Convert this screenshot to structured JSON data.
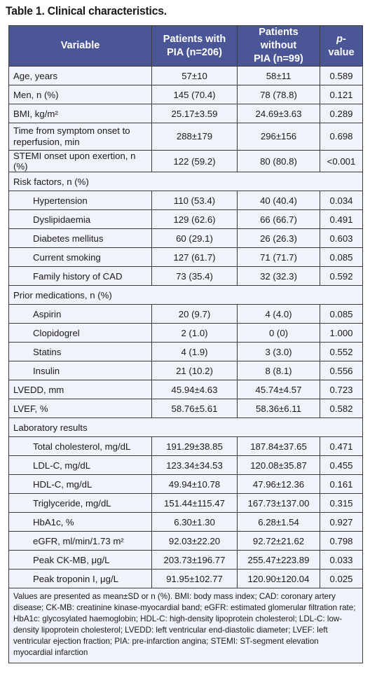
{
  "title": "Table 1. Clinical characteristics.",
  "headers": {
    "variable": "Variable",
    "pia_line1": "Patients with",
    "pia_line2": "PIA (n=206)",
    "nopia_line1": "Patients without",
    "nopia_line2": "PIA (n=99)",
    "p_italic": "p",
    "p_rest": "-value"
  },
  "rows": [
    {
      "label": "Age, years",
      "a": "57±10",
      "b": "58±11",
      "p": "0.589"
    },
    {
      "label": "Men, n (%)",
      "a": "145 (70.4)",
      "b": "78 (78.8)",
      "p": "0.121"
    },
    {
      "label": "BMI, kg/m²",
      "a": "25.17±3.59",
      "b": "24.69±3.63",
      "p": "0.289"
    },
    {
      "label": "Time from symptom onset to reperfusion, min",
      "a": "288±179",
      "b": "296±156",
      "p": "0.698"
    },
    {
      "label": "STEMI onset upon exertion, n (%)",
      "a": "122 (59.2)",
      "b": "80 (80.8)",
      "p": "<0.001"
    },
    {
      "label": "Risk factors, n (%)"
    },
    {
      "label": "Hypertension",
      "a": "110 (53.4)",
      "b": "40 (40.4)",
      "p": "0.034"
    },
    {
      "label": "Dyslipidaemia",
      "a": "129 (62.6)",
      "b": "66 (66.7)",
      "p": "0.491"
    },
    {
      "label": "Diabetes mellitus",
      "a": "60 (29.1)",
      "b": "26 (26.3)",
      "p": "0.603"
    },
    {
      "label": "Current smoking",
      "a": "127 (61.7)",
      "b": "71 (71.7)",
      "p": "0.085"
    },
    {
      "label": "Family history of CAD",
      "a": "73 (35.4)",
      "b": "32 (32.3)",
      "p": "0.592"
    },
    {
      "label": "Prior medications, n (%)"
    },
    {
      "label": "Aspirin",
      "a": "20 (9.7)",
      "b": "4 (4.0)",
      "p": "0.085"
    },
    {
      "label": "Clopidogrel",
      "a": "2 (1.0)",
      "b": "0 (0)",
      "p": "1.000"
    },
    {
      "label": "Statins",
      "a": "4 (1.9)",
      "b": "3 (3.0)",
      "p": "0.552"
    },
    {
      "label": "Insulin",
      "a": "21 (10.2)",
      "b": "8 (8.1)",
      "p": "0.556"
    },
    {
      "label": "LVEDD, mm",
      "a": "45.94±4.63",
      "b": "45.74±4.57",
      "p": "0.723"
    },
    {
      "label": "LVEF, %",
      "a": "58.76±5.61",
      "b": "58.36±6.11",
      "p": "0.582"
    },
    {
      "label": "Laboratory results"
    },
    {
      "label": "Total cholesterol, mg/dL",
      "a": "191.29±38.85",
      "b": "187.84±37.65",
      "p": "0.471"
    },
    {
      "label": "LDL-C, mg/dL",
      "a": "123.34±34.53",
      "b": "120.08±35.87",
      "p": "0.455"
    },
    {
      "label": "HDL-C, mg/dL",
      "a": "49.94±10.78",
      "b": "47.96±12.36",
      "p": "0.161"
    },
    {
      "label": "Triglyceride, mg/dL",
      "a": "151.44±115.47",
      "b": "167.73±137.00",
      "p": "0.315"
    },
    {
      "label": "HbA1c, %",
      "a": "6.30±1.30",
      "b": "6.28±1.54",
      "p": "0.927"
    },
    {
      "label": "eGFR, ml/min/1.73 m²",
      "a": "92.03±22.20",
      "b": "92.72±21.62",
      "p": "0.798"
    },
    {
      "label": "Peak CK-MB, μg/L",
      "a": "203.73±196.77",
      "b": "255.47±223.89",
      "p": "0.033"
    },
    {
      "label": "Peak troponin I, μg/L",
      "a": "91.95±102.77",
      "b": "120.90±120.04",
      "p": "0.025"
    }
  ],
  "footnote": "Values are presented as mean±SD or n (%). BMI: body mass index; CAD: coronary artery disease; CK-MB: creatinine kinase-myocardial band; eGFR: estimated glomerular filtration rate; HbA1c: glycosylated haemoglobin; HDL-C: high-density lipoprotein cholesterol; LDL-C: low-density lipoprotein cholesterol; LVEDD: left ventricular end-diastolic diameter; LVEF: left ventricular ejection fraction; PIA: pre-infarction angina; STEMI: ST-segment elevation myocardial infarction"
}
